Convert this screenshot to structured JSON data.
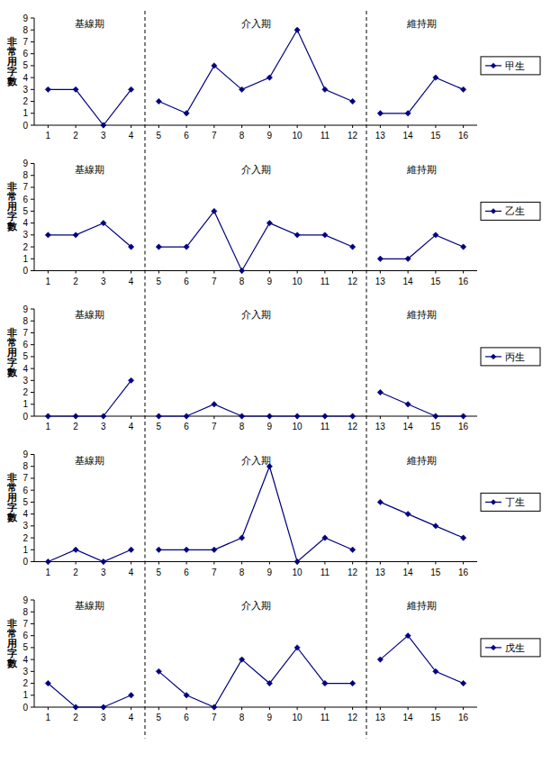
{
  "chart_data": [
    {
      "type": "line",
      "y_label": "非常用字數",
      "legend": "right",
      "x": [
        1,
        2,
        3,
        4,
        5,
        6,
        7,
        8,
        9,
        10,
        11,
        12,
        13,
        14,
        15,
        16
      ],
      "xlim": [
        0.5,
        16.5
      ],
      "xticks": [
        1,
        2,
        3,
        4,
        5,
        6,
        7,
        8,
        9,
        10,
        11,
        12,
        13,
        14,
        15,
        16
      ],
      "ylim": [
        0,
        9
      ],
      "yticks": [
        0,
        1,
        2,
        3,
        4,
        5,
        6,
        7,
        8,
        9
      ],
      "phases": [
        {
          "label": "基線期",
          "from": 1,
          "to": 4
        },
        {
          "label": "介入期",
          "from": 5,
          "to": 12
        },
        {
          "label": "維持期",
          "from": 13,
          "to": 16
        }
      ],
      "series": [
        {
          "name": "甲生",
          "color": "#000080",
          "marker": "diamond",
          "values": [
            3,
            3,
            0,
            3,
            2,
            1,
            5,
            3,
            4,
            8,
            3,
            2,
            1,
            1,
            4,
            3
          ]
        }
      ]
    },
    {
      "type": "line",
      "y_label": "非常用字數",
      "legend": "right",
      "x": [
        1,
        2,
        3,
        4,
        5,
        6,
        7,
        8,
        9,
        10,
        11,
        12,
        13,
        14,
        15,
        16
      ],
      "xlim": [
        0.5,
        16.5
      ],
      "xticks": [
        1,
        2,
        3,
        4,
        5,
        6,
        7,
        8,
        9,
        10,
        11,
        12,
        13,
        14,
        15,
        16
      ],
      "ylim": [
        0,
        9
      ],
      "yticks": [
        0,
        1,
        2,
        3,
        4,
        5,
        6,
        7,
        8,
        9
      ],
      "phases": [
        {
          "label": "基線期",
          "from": 1,
          "to": 4
        },
        {
          "label": "介入期",
          "from": 5,
          "to": 12
        },
        {
          "label": "維持期",
          "from": 13,
          "to": 16
        }
      ],
      "series": [
        {
          "name": "乙生",
          "color": "#000080",
          "marker": "diamond",
          "values": [
            3,
            3,
            4,
            2,
            2,
            2,
            5,
            0,
            4,
            3,
            3,
            2,
            1,
            1,
            3,
            2
          ]
        }
      ]
    },
    {
      "type": "line",
      "y_label": "非常用字數",
      "legend": "right",
      "x": [
        1,
        2,
        3,
        4,
        5,
        6,
        7,
        8,
        9,
        10,
        11,
        12,
        13,
        14,
        15,
        16
      ],
      "xlim": [
        0.5,
        16.5
      ],
      "xticks": [
        1,
        2,
        3,
        4,
        5,
        6,
        7,
        8,
        9,
        10,
        11,
        12,
        13,
        14,
        15,
        16
      ],
      "ylim": [
        0,
        9
      ],
      "yticks": [
        0,
        1,
        2,
        3,
        4,
        5,
        6,
        7,
        8,
        9
      ],
      "phases": [
        {
          "label": "基線期",
          "from": 1,
          "to": 4
        },
        {
          "label": "介入期",
          "from": 5,
          "to": 12
        },
        {
          "label": "維持期",
          "from": 13,
          "to": 16
        }
      ],
      "series": [
        {
          "name": "丙生",
          "color": "#000080",
          "marker": "diamond",
          "values": [
            0,
            0,
            0,
            3,
            0,
            0,
            1,
            0,
            0,
            0,
            0,
            0,
            2,
            1,
            0,
            0
          ]
        }
      ]
    },
    {
      "type": "line",
      "y_label": "非常用字數",
      "legend": "right",
      "x": [
        1,
        2,
        3,
        4,
        5,
        6,
        7,
        8,
        9,
        10,
        11,
        12,
        13,
        14,
        15,
        16
      ],
      "xlim": [
        0.5,
        16.5
      ],
      "xticks": [
        1,
        2,
        3,
        4,
        5,
        6,
        7,
        8,
        9,
        10,
        11,
        12,
        13,
        14,
        15,
        16
      ],
      "ylim": [
        0,
        9
      ],
      "yticks": [
        0,
        1,
        2,
        3,
        4,
        5,
        6,
        7,
        8,
        9
      ],
      "phases": [
        {
          "label": "基線期",
          "from": 1,
          "to": 4
        },
        {
          "label": "介入期",
          "from": 5,
          "to": 12
        },
        {
          "label": "維持期",
          "from": 13,
          "to": 16
        }
      ],
      "series": [
        {
          "name": "丁生",
          "color": "#000080",
          "marker": "diamond",
          "values": [
            0,
            1,
            0,
            1,
            1,
            1,
            1,
            2,
            8,
            0,
            2,
            1,
            5,
            4,
            3,
            2
          ]
        }
      ]
    },
    {
      "type": "line",
      "y_label": "非常用字數",
      "legend": "right",
      "x": [
        1,
        2,
        3,
        4,
        5,
        6,
        7,
        8,
        9,
        10,
        11,
        12,
        13,
        14,
        15,
        16
      ],
      "xlim": [
        0.5,
        16.5
      ],
      "xticks": [
        1,
        2,
        3,
        4,
        5,
        6,
        7,
        8,
        9,
        10,
        11,
        12,
        13,
        14,
        15,
        16
      ],
      "ylim": [
        0,
        9
      ],
      "yticks": [
        0,
        1,
        2,
        3,
        4,
        5,
        6,
        7,
        8,
        9
      ],
      "phases": [
        {
          "label": "基線期",
          "from": 1,
          "to": 4
        },
        {
          "label": "介入期",
          "from": 5,
          "to": 12
        },
        {
          "label": "維持期",
          "from": 13,
          "to": 16
        }
      ],
      "series": [
        {
          "name": "戊生",
          "color": "#000080",
          "marker": "diamond",
          "values": [
            2,
            0,
            0,
            1,
            3,
            1,
            0,
            4,
            2,
            5,
            2,
            2,
            4,
            6,
            3,
            2
          ]
        }
      ]
    }
  ]
}
